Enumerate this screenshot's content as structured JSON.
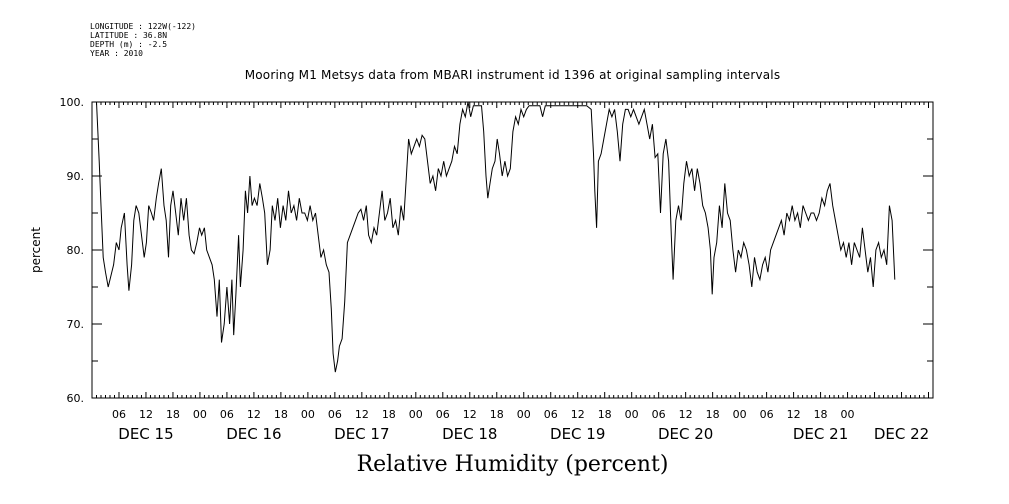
{
  "meta": {
    "longitude": "LONGITUDE : 122W(-122)",
    "latitude": "LATITUDE : 36.8N",
    "depth": "DEPTH (m) : -2.5",
    "year": "YEAR : 2010"
  },
  "chart_data": {
    "type": "line",
    "title": "Mooring M1 Metsys data from MBARI instrument id 1396 at original sampling intervals",
    "xlabel": "Relative Humidity (percent)",
    "ylabel": "percent",
    "ylim": [
      60,
      100
    ],
    "yticks": [
      60,
      70,
      80,
      90,
      100
    ],
    "ytick_labels": [
      "60.",
      "70.",
      "80.",
      "90.",
      "100."
    ],
    "xlim_hours": [
      0,
      187
    ],
    "hour_tick_labels": [
      "06",
      "12",
      "18",
      "00",
      "06",
      "12",
      "18",
      "00",
      "06",
      "12",
      "18",
      "00",
      "06",
      "12",
      "18",
      "00",
      "06",
      "12",
      "18",
      "00",
      "06",
      "12",
      "18",
      "00",
      "06",
      "12",
      "18",
      "00"
    ],
    "day_labels": [
      "DEC 15",
      "DEC 16",
      "DEC 17",
      "DEC 18",
      "DEC 19",
      "DEC 20",
      "DEC 21",
      "DEC 22"
    ],
    "grid": false,
    "series": [
      {
        "values": [
          [
            1,
            100
          ],
          [
            1.6,
            92
          ],
          [
            2,
            86
          ],
          [
            2.5,
            79
          ],
          [
            3,
            77
          ],
          [
            3.6,
            75
          ],
          [
            4.2,
            76.5
          ],
          [
            4.8,
            78
          ],
          [
            5.4,
            81
          ],
          [
            6,
            80
          ],
          [
            6.5,
            83
          ],
          [
            7.2,
            85
          ],
          [
            7.8,
            78
          ],
          [
            8.2,
            74.5
          ],
          [
            8.8,
            78
          ],
          [
            9.3,
            84
          ],
          [
            9.8,
            86
          ],
          [
            10.4,
            85
          ],
          [
            11,
            82
          ],
          [
            11.6,
            79
          ],
          [
            12.1,
            81
          ],
          [
            12.6,
            86
          ],
          [
            13.2,
            85
          ],
          [
            13.7,
            84
          ],
          [
            14.3,
            87
          ],
          [
            14.8,
            89
          ],
          [
            15.4,
            91
          ],
          [
            16,
            86
          ],
          [
            16.5,
            84
          ],
          [
            17,
            79
          ],
          [
            17.5,
            86
          ],
          [
            18,
            88
          ],
          [
            18.6,
            85
          ],
          [
            19.2,
            82
          ],
          [
            19.8,
            87
          ],
          [
            20.4,
            84
          ],
          [
            21,
            87
          ],
          [
            21.6,
            82
          ],
          [
            22.1,
            80
          ],
          [
            22.7,
            79.5
          ],
          [
            23.3,
            81
          ],
          [
            23.9,
            83
          ],
          [
            24.4,
            82
          ],
          [
            25,
            83
          ],
          [
            25.5,
            80
          ],
          [
            26.1,
            79
          ],
          [
            26.7,
            78
          ],
          [
            27.2,
            76
          ],
          [
            27.8,
            71
          ],
          [
            28.3,
            76
          ],
          [
            28.8,
            67.5
          ],
          [
            29.4,
            70
          ],
          [
            30,
            75
          ],
          [
            30.6,
            70
          ],
          [
            31.1,
            76
          ],
          [
            31.5,
            68.5
          ],
          [
            32,
            74
          ],
          [
            32.6,
            82
          ],
          [
            33,
            75
          ],
          [
            33.6,
            80
          ],
          [
            34.1,
            88
          ],
          [
            34.6,
            85
          ],
          [
            35.1,
            90
          ],
          [
            35.6,
            86
          ],
          [
            36.1,
            87
          ],
          [
            36.7,
            86
          ],
          [
            37.3,
            89
          ],
          [
            37.9,
            87
          ],
          [
            38.4,
            85
          ],
          [
            39,
            78
          ],
          [
            39.6,
            80
          ],
          [
            40.1,
            86
          ],
          [
            40.7,
            84
          ],
          [
            41.3,
            87
          ],
          [
            41.9,
            83
          ],
          [
            42.5,
            86
          ],
          [
            43.1,
            84
          ],
          [
            43.7,
            88
          ],
          [
            44.3,
            85
          ],
          [
            44.9,
            86
          ],
          [
            45.5,
            84
          ],
          [
            46.1,
            87
          ],
          [
            46.7,
            85
          ],
          [
            47.3,
            85
          ],
          [
            47.9,
            84
          ],
          [
            48.5,
            86
          ],
          [
            49.1,
            84
          ],
          [
            49.7,
            85
          ],
          [
            50.3,
            82
          ],
          [
            50.9,
            79
          ],
          [
            51.5,
            80
          ],
          [
            52.1,
            78
          ],
          [
            52.7,
            77
          ],
          [
            53.2,
            72
          ],
          [
            53.6,
            66
          ],
          [
            54.1,
            63.5
          ],
          [
            54.6,
            65
          ],
          [
            55,
            67
          ],
          [
            55.6,
            68
          ],
          [
            56.2,
            73
          ],
          [
            56.8,
            81
          ],
          [
            57.4,
            82
          ],
          [
            58,
            83
          ],
          [
            58.6,
            84
          ],
          [
            59.2,
            85
          ],
          [
            59.8,
            85.5
          ],
          [
            60.4,
            84
          ],
          [
            61,
            86
          ],
          [
            61.5,
            82
          ],
          [
            62.1,
            81
          ],
          [
            62.7,
            83
          ],
          [
            63.3,
            82
          ],
          [
            63.9,
            85
          ],
          [
            64.5,
            88
          ],
          [
            65.1,
            84
          ],
          [
            65.7,
            85
          ],
          [
            66.3,
            87
          ],
          [
            66.9,
            83
          ],
          [
            67.5,
            84
          ],
          [
            68.1,
            82
          ],
          [
            68.7,
            86
          ],
          [
            69.3,
            84
          ],
          [
            69.9,
            90
          ],
          [
            70.4,
            95
          ],
          [
            71,
            93
          ],
          [
            71.6,
            94
          ],
          [
            72.2,
            95
          ],
          [
            72.8,
            94
          ],
          [
            73.4,
            95.5
          ],
          [
            74,
            95
          ],
          [
            74.6,
            92
          ],
          [
            75.2,
            89
          ],
          [
            75.8,
            90
          ],
          [
            76.4,
            88
          ],
          [
            77,
            91
          ],
          [
            77.6,
            90
          ],
          [
            78.2,
            92
          ],
          [
            78.8,
            90
          ],
          [
            79.4,
            91
          ],
          [
            80,
            92
          ],
          [
            80.6,
            94
          ],
          [
            81.2,
            93
          ],
          [
            81.8,
            97
          ],
          [
            82.4,
            99
          ],
          [
            83,
            98
          ],
          [
            83.6,
            100
          ],
          [
            84.2,
            98
          ],
          [
            84.8,
            99.5
          ],
          [
            85.4,
            99.5
          ],
          [
            86,
            99.5
          ],
          [
            86.6,
            99.5
          ],
          [
            87.1,
            96
          ],
          [
            87.6,
            90
          ],
          [
            88,
            87
          ],
          [
            88.5,
            89
          ],
          [
            89,
            91
          ],
          [
            89.6,
            92
          ],
          [
            90.1,
            95
          ],
          [
            90.6,
            93
          ],
          [
            91.2,
            90
          ],
          [
            91.8,
            92
          ],
          [
            92.4,
            90
          ],
          [
            93,
            91
          ],
          [
            93.6,
            96
          ],
          [
            94.2,
            98
          ],
          [
            94.8,
            97
          ],
          [
            95.4,
            99
          ],
          [
            96,
            98
          ],
          [
            96.6,
            99
          ],
          [
            97.2,
            99.5
          ],
          [
            98.4,
            99.5
          ],
          [
            99.6,
            99.5
          ],
          [
            100.2,
            98
          ],
          [
            100.8,
            99.5
          ],
          [
            102,
            99.5
          ],
          [
            104,
            99.5
          ],
          [
            106,
            99.5
          ],
          [
            108,
            99.5
          ],
          [
            110,
            99.5
          ],
          [
            111,
            99
          ],
          [
            111.5,
            93
          ],
          [
            111.8,
            88
          ],
          [
            112.2,
            83
          ],
          [
            112.6,
            92
          ],
          [
            113.2,
            93
          ],
          [
            113.8,
            95
          ],
          [
            114.4,
            97
          ],
          [
            115,
            99
          ],
          [
            115.6,
            98
          ],
          [
            116.2,
            99
          ],
          [
            116.8,
            96
          ],
          [
            117.4,
            92
          ],
          [
            118,
            97
          ],
          [
            118.6,
            99
          ],
          [
            119.2,
            99
          ],
          [
            119.8,
            98
          ],
          [
            120.4,
            99
          ],
          [
            121,
            98
          ],
          [
            121.6,
            97
          ],
          [
            122.2,
            98
          ],
          [
            122.8,
            99
          ],
          [
            123.4,
            97
          ],
          [
            124,
            95
          ],
          [
            124.6,
            97
          ],
          [
            125.2,
            92.5
          ],
          [
            125.8,
            93
          ],
          [
            126.4,
            85
          ],
          [
            127,
            93
          ],
          [
            127.6,
            95
          ],
          [
            128.2,
            92
          ],
          [
            128.8,
            82
          ],
          [
            129.2,
            76
          ],
          [
            129.8,
            84
          ],
          [
            130.4,
            86
          ],
          [
            131,
            84
          ],
          [
            131.6,
            89
          ],
          [
            132.2,
            92
          ],
          [
            132.8,
            90
          ],
          [
            133.4,
            91
          ],
          [
            134,
            88
          ],
          [
            134.6,
            91
          ],
          [
            135.2,
            89
          ],
          [
            135.8,
            86
          ],
          [
            136.4,
            85
          ],
          [
            137,
            83
          ],
          [
            137.5,
            80
          ],
          [
            137.9,
            74
          ],
          [
            138.3,
            79
          ],
          [
            138.9,
            81
          ],
          [
            139.5,
            86
          ],
          [
            140.1,
            83
          ],
          [
            140.7,
            89
          ],
          [
            141.3,
            85
          ],
          [
            141.9,
            84
          ],
          [
            142.5,
            80
          ],
          [
            143.1,
            77
          ],
          [
            143.7,
            80
          ],
          [
            144.3,
            79
          ],
          [
            144.9,
            81
          ],
          [
            145.5,
            80
          ],
          [
            146.1,
            78
          ],
          [
            146.7,
            75
          ],
          [
            147.3,
            79
          ],
          [
            147.9,
            77
          ],
          [
            148.5,
            76
          ],
          [
            149.1,
            78
          ],
          [
            149.7,
            79
          ],
          [
            150.3,
            77
          ],
          [
            150.9,
            80
          ],
          [
            151.5,
            81
          ],
          [
            152.1,
            82
          ],
          [
            152.7,
            83
          ],
          [
            153.3,
            84
          ],
          [
            153.9,
            82
          ],
          [
            154.5,
            85
          ],
          [
            155.1,
            84
          ],
          [
            155.7,
            86
          ],
          [
            156.3,
            84
          ],
          [
            156.9,
            85
          ],
          [
            157.5,
            83
          ],
          [
            158.1,
            86
          ],
          [
            158.7,
            85
          ],
          [
            159.3,
            84
          ],
          [
            159.9,
            85
          ],
          [
            160.5,
            85
          ],
          [
            161.1,
            84
          ],
          [
            161.7,
            85
          ],
          [
            162.3,
            87
          ],
          [
            162.9,
            86
          ],
          [
            163.5,
            88
          ],
          [
            164.1,
            89
          ],
          [
            164.7,
            86
          ],
          [
            165.3,
            84
          ],
          [
            165.9,
            82
          ],
          [
            166.5,
            80
          ],
          [
            167.1,
            81
          ],
          [
            167.7,
            79
          ],
          [
            168.3,
            81
          ],
          [
            168.9,
            78
          ],
          [
            169.5,
            81
          ],
          [
            170.1,
            80
          ],
          [
            170.7,
            79
          ],
          [
            171.3,
            83
          ],
          [
            171.9,
            80
          ],
          [
            172.5,
            77
          ],
          [
            173.1,
            79
          ],
          [
            173.7,
            75
          ],
          [
            174.3,
            80
          ],
          [
            174.9,
            81
          ],
          [
            175.5,
            79
          ],
          [
            176.1,
            80
          ],
          [
            176.7,
            78
          ],
          [
            177.3,
            86
          ],
          [
            177.9,
            84
          ],
          [
            178.5,
            76
          ]
        ]
      }
    ]
  }
}
